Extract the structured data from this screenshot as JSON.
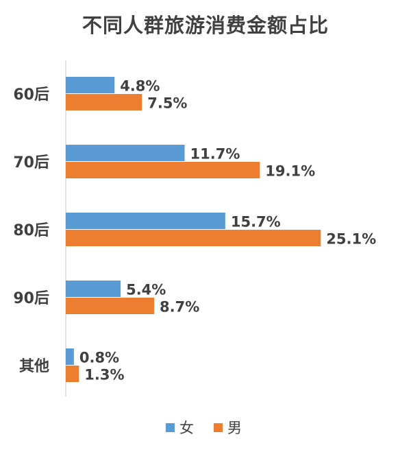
{
  "chart_data": {
    "type": "bar",
    "orientation": "horizontal",
    "title": "不同人群旅游消费金额占比",
    "categories": [
      "60后",
      "70后",
      "80后",
      "90后",
      "其他"
    ],
    "series": [
      {
        "name": "女",
        "color": "#5B9BD5",
        "values": [
          4.8,
          11.7,
          15.7,
          5.4,
          0.8
        ],
        "labels": [
          "4.8%",
          "11.7%",
          "15.7%",
          "5.4%",
          "0.8%"
        ]
      },
      {
        "name": "男",
        "color": "#ED7D31",
        "values": [
          7.5,
          19.1,
          25.1,
          8.7,
          1.3
        ],
        "labels": [
          "7.5%",
          "19.1%",
          "25.1%",
          "8.7%",
          "1.3%"
        ]
      }
    ],
    "value_unit": "%",
    "xlim": [
      0,
      26.7
    ],
    "grid": false,
    "legend": "bottom"
  }
}
